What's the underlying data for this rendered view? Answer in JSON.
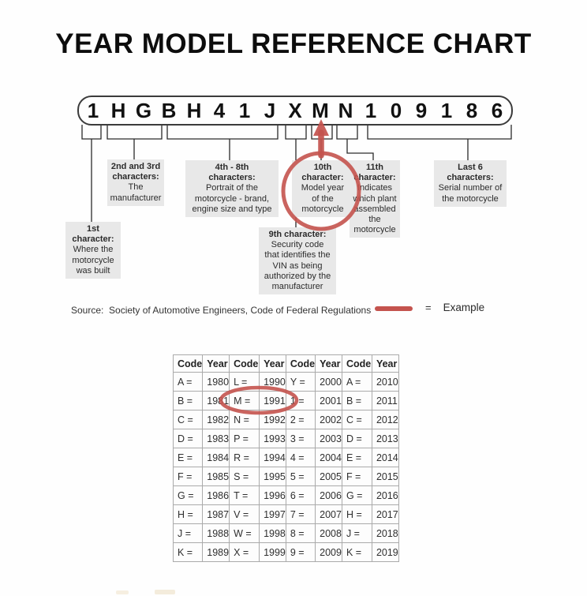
{
  "title": "YEAR MODEL REFERENCE CHART",
  "vin": {
    "characters": [
      "1",
      "H",
      "G",
      "B",
      "H",
      "4",
      "1",
      "J",
      "X",
      "M",
      "N",
      "1",
      "0",
      "9",
      "1",
      "8",
      "6"
    ],
    "highlighted_character": "M",
    "highlighted_position": "10th"
  },
  "annotations": {
    "first": {
      "title": "1st\ncharacter:",
      "desc": "Where the\nmotorcycle\nwas built"
    },
    "second": {
      "title": "2nd and 3rd\ncharacters:",
      "desc": "The\nmanufacturer"
    },
    "fourth": {
      "title": "4th - 8th\ncharacters:",
      "desc": "Portrait of the\nmotorcycle - brand,\nengine size and type"
    },
    "ninth": {
      "title": "9th character:",
      "desc": "Security code\nthat identifies the\nVIN as being\nauthorized by the\nmanufacturer"
    },
    "tenth": {
      "title": "10th\ncharacter:",
      "desc": "Model year\nof the\nmotorcycle"
    },
    "eleventh": {
      "title": "11th\ncharacter:",
      "desc": "Indicates\nwhich plant\nassembled\nthe\nmotorcycle"
    },
    "last6": {
      "title": "Last 6\ncharacters:",
      "desc": "Serial number of\nthe motorcycle"
    }
  },
  "source": "Source:  Society of Automotive Engineers, Code of Federal Regulations",
  "legend": {
    "equals": "=",
    "label": "Example"
  },
  "table": {
    "headers": [
      "Code",
      "Year",
      "Code",
      "Year",
      "Code",
      "Year",
      "Code",
      "Year"
    ],
    "rows": [
      [
        "A =",
        "1980",
        "L =",
        "1990",
        "Y =",
        "2000",
        "A =",
        "2010"
      ],
      [
        "B =",
        "1981",
        "M =",
        "1991",
        "1 =",
        "2001",
        "B =",
        "2011"
      ],
      [
        "C =",
        "1982",
        "N =",
        "1992",
        "2 =",
        "2002",
        "C =",
        "2012"
      ],
      [
        "D =",
        "1983",
        "P =",
        "1993",
        "3 =",
        "2003",
        "D =",
        "2013"
      ],
      [
        "E =",
        "1984",
        "R =",
        "1994",
        "4 =",
        "2004",
        "E =",
        "2014"
      ],
      [
        "F =",
        "1985",
        "S =",
        "1995",
        "5 =",
        "2005",
        "F =",
        "2015"
      ],
      [
        "G =",
        "1986",
        "T =",
        "1996",
        "6 =",
        "2006",
        "G =",
        "2016"
      ],
      [
        "H =",
        "1987",
        "V =",
        "1997",
        "7 =",
        "2007",
        "H =",
        "2017"
      ],
      [
        "J =",
        "1988",
        "W =",
        "1998",
        "8 =",
        "2008",
        "J =",
        "2018"
      ],
      [
        "K =",
        "1989",
        "X =",
        "1999",
        "9 =",
        "2009",
        "K =",
        "2019"
      ]
    ],
    "circled_cells": [
      "M =",
      "1991"
    ]
  },
  "colors": {
    "accent_red": "#c4534e",
    "annotation_box_gray": "#e8e8e8",
    "table_border_gray": "#aaaaaa"
  }
}
